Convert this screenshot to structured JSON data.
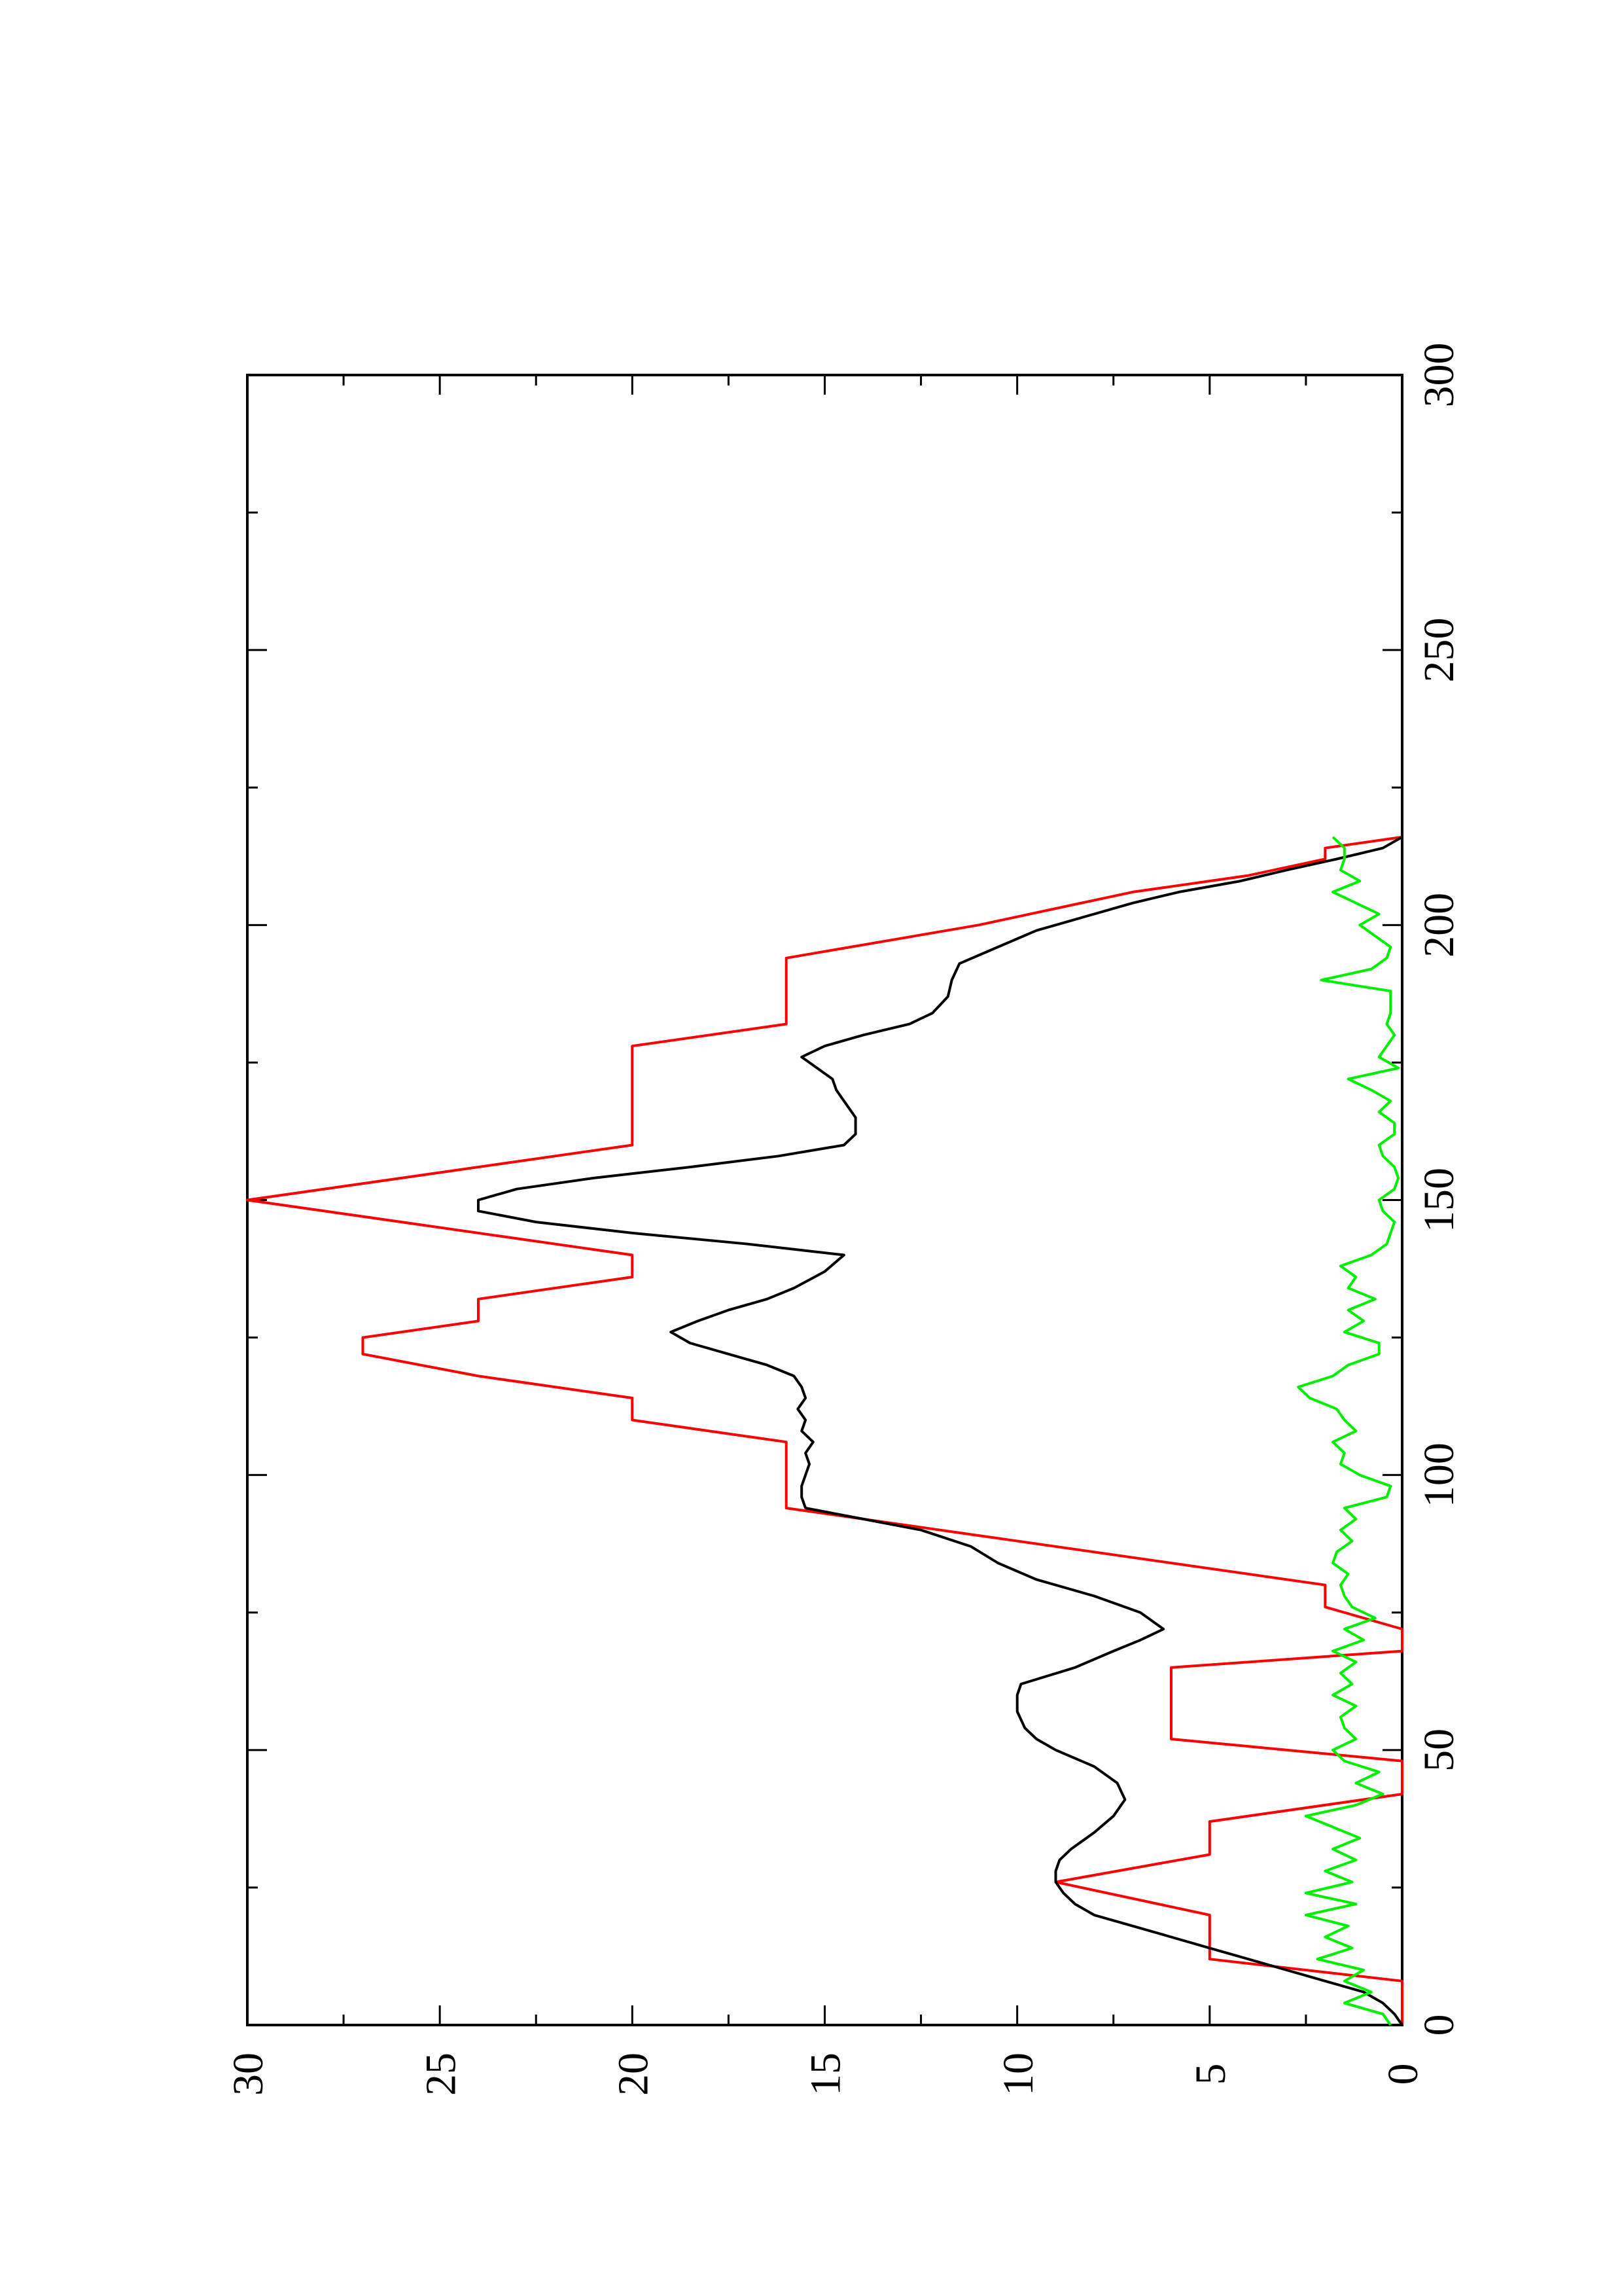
{
  "chart_data": {
    "type": "line",
    "title": "",
    "xlabel": "",
    "ylabel": "",
    "xlim": [
      0,
      300
    ],
    "ylim": [
      0,
      30
    ],
    "orientation": "rotated 90 degrees counter-clockwise",
    "grid": false,
    "legend": "none",
    "x_ticks": [
      "0",
      "50",
      "100",
      "150",
      "200",
      "250",
      "300"
    ],
    "y_ticks": [
      "0",
      "5",
      "10",
      "15",
      "20",
      "25",
      "30"
    ],
    "series": [
      {
        "color": "#ff0000",
        "x": [
          0,
          8,
          12,
          20,
          26,
          31,
          37,
          42,
          48,
          52,
          56,
          60,
          65,
          68,
          72,
          76,
          80,
          89,
          94,
          96,
          100,
          106,
          110,
          114,
          118,
          122,
          125,
          128,
          132,
          136,
          140,
          145,
          150,
          155,
          160,
          165,
          170,
          175,
          178,
          182,
          186,
          190,
          194,
          200,
          206,
          209,
          212,
          214,
          216
        ],
        "y": [
          0,
          0,
          5,
          5,
          9,
          5,
          5,
          0,
          0,
          6,
          6,
          6,
          6,
          0,
          0,
          2,
          2,
          11,
          16,
          16,
          16,
          16,
          20,
          20,
          24,
          27,
          27,
          24,
          24,
          20,
          20,
          25,
          30,
          25,
          20,
          20,
          20,
          20,
          20,
          16,
          16,
          16,
          16,
          11,
          7,
          4,
          2,
          2,
          0
        ]
      },
      {
        "color": "#000000",
        "x": [
          0,
          2,
          4,
          6,
          8,
          10,
          12,
          14,
          16,
          18,
          20,
          22,
          24,
          26,
          28,
          30,
          32,
          35,
          38,
          41,
          44,
          47,
          50,
          52,
          54,
          57,
          60,
          62,
          65,
          68,
          70,
          72,
          75,
          78,
          81,
          84,
          87,
          90,
          92,
          94,
          96,
          98,
          100,
          102,
          104,
          106,
          108,
          110,
          112,
          114,
          116,
          118,
          120,
          122,
          124,
          126,
          128,
          130,
          132,
          134,
          137,
          140,
          142,
          144,
          146,
          148,
          150,
          152,
          154,
          156,
          158,
          160,
          162,
          165,
          168,
          170,
          172,
          174,
          176,
          178,
          180,
          182,
          184,
          187,
          190,
          193,
          196,
          199,
          202,
          204,
          206,
          208,
          210,
          212,
          214,
          216
        ],
        "y": [
          0,
          0.2,
          0.5,
          1,
          2,
          3,
          4,
          5,
          6,
          7,
          8,
          8.5,
          8.8,
          9,
          9,
          8.9,
          8.6,
          8,
          7.5,
          7.2,
          7.4,
          8,
          9,
          9.5,
          9.8,
          10,
          10,
          9.9,
          8.5,
          7.5,
          6.8,
          6.2,
          6.8,
          8,
          9.5,
          10.5,
          11.2,
          12.5,
          14,
          15.5,
          15.6,
          15.6,
          15.5,
          15.4,
          15.5,
          15.3,
          15.6,
          15.5,
          15.7,
          15.5,
          15.6,
          15.8,
          16.5,
          17.5,
          18.5,
          19,
          18.3,
          17.5,
          16.5,
          15.8,
          15,
          14.5,
          17,
          20,
          22.5,
          24,
          24,
          23,
          21,
          18.5,
          16.2,
          14.5,
          14.2,
          14.2,
          14.5,
          14.7,
          14.8,
          15.2,
          15.6,
          15,
          14,
          12.8,
          12.2,
          11.8,
          11.7,
          11.5,
          10.5,
          9.5,
          8,
          7,
          5.8,
          4.2,
          3,
          1.7,
          0.5,
          0
        ]
      },
      {
        "color": "#00ee00",
        "x": [
          0,
          2,
          4,
          6,
          8,
          10,
          12,
          14,
          16,
          18,
          20,
          22,
          24,
          26,
          28,
          30,
          32,
          34,
          36,
          38,
          40,
          42,
          44,
          46,
          48,
          50,
          52,
          54,
          56,
          58,
          60,
          62,
          64,
          66,
          68,
          70,
          72,
          74,
          76,
          78,
          80,
          82,
          84,
          86,
          88,
          90,
          92,
          94,
          96,
          98,
          100,
          102,
          104,
          106,
          108,
          110,
          112,
          114,
          116,
          118,
          120,
          122,
          124,
          126,
          128,
          130,
          132,
          134,
          136,
          138,
          140,
          142,
          144,
          146,
          148,
          150,
          152,
          154,
          156,
          158,
          160,
          162,
          164,
          166,
          168,
          170,
          172,
          174,
          176,
          178,
          180,
          182,
          184,
          186,
          188,
          190,
          192,
          194,
          196,
          198,
          200,
          202,
          204,
          206,
          208,
          210,
          212,
          214,
          216
        ],
        "y": [
          0.3,
          0.5,
          1.5,
          0.8,
          1.5,
          1,
          2.2,
          1.3,
          2,
          1.4,
          2.5,
          1.2,
          2.5,
          1.3,
          2,
          1.2,
          1.8,
          1.1,
          1.8,
          2.5,
          1.2,
          0.5,
          1.2,
          0.6,
          1.5,
          1.8,
          1.2,
          1.5,
          1.6,
          1.2,
          1.8,
          1.3,
          1.6,
          1.2,
          1.8,
          1,
          1.5,
          0.7,
          1.3,
          1.5,
          1.6,
          1.4,
          1.8,
          1.7,
          1.3,
          1.6,
          1.2,
          1.5,
          0.4,
          0.3,
          1.1,
          1.6,
          1.5,
          1.8,
          1.2,
          1.5,
          1.7,
          2.4,
          2.7,
          1.8,
          1.4,
          0.6,
          0.6,
          1.5,
          1.0,
          1.4,
          0.7,
          1.4,
          1.2,
          1.6,
          0.8,
          0.4,
          0.3,
          0.2,
          0.5,
          0.6,
          0.2,
          0.1,
          0.2,
          0.5,
          0.6,
          0.2,
          0.2,
          0.6,
          0.3,
          0.8,
          1.4,
          0.1,
          0.6,
          0.4,
          0.2,
          0.4,
          0.3,
          0.3,
          0.3,
          2.1,
          0.8,
          0.4,
          0.3,
          0.7,
          1.1,
          0.6,
          1.2,
          1.8,
          1.1,
          1.6,
          1.5,
          1.5,
          1.8
        ]
      }
    ]
  }
}
